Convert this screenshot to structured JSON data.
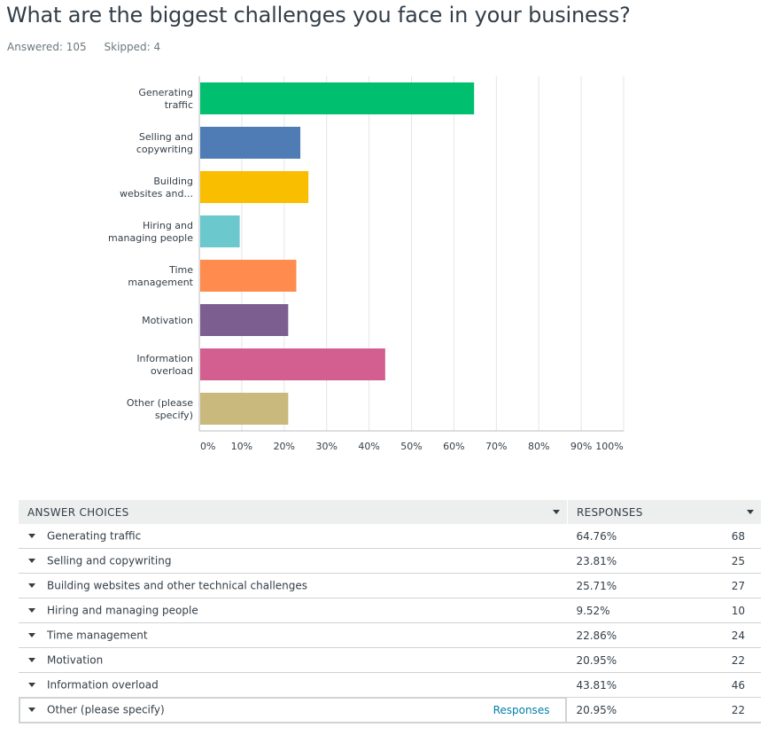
{
  "question": {
    "title": "What are the biggest challenges you face in your business?",
    "answered_label": "Answered: 105",
    "skipped_label": "Skipped: 4"
  },
  "chart_data": {
    "type": "bar",
    "orientation": "horizontal",
    "categories": [
      [
        "Generating",
        "traffic"
      ],
      [
        "Selling and",
        "copywriting"
      ],
      [
        "Building",
        "websites and..."
      ],
      [
        "Hiring and",
        "managing people"
      ],
      [
        "Time",
        "management"
      ],
      [
        "Motivation"
      ],
      [
        "Information",
        "overload"
      ],
      [
        "Other (please",
        "specify)"
      ]
    ],
    "values": [
      64.76,
      23.81,
      25.71,
      9.52,
      22.86,
      20.95,
      43.81,
      20.95
    ],
    "colors": [
      "#00bf6f",
      "#507cb6",
      "#f9be00",
      "#6bc8cd",
      "#ff8b4f",
      "#7d5e90",
      "#d25f90",
      "#c9b97d"
    ],
    "xlim": [
      0,
      100
    ],
    "xticks": [
      "0%",
      "10%",
      "20%",
      "30%",
      "40%",
      "50%",
      "60%",
      "70%",
      "80%",
      "90%",
      "100%"
    ],
    "grid": true
  },
  "table": {
    "headers": {
      "answer": "ANSWER CHOICES",
      "responses": "RESPONSES"
    },
    "rows": [
      {
        "answer": "Generating traffic",
        "percent": "64.76%",
        "count": "68"
      },
      {
        "answer": "Selling and copywriting",
        "percent": "23.81%",
        "count": "25"
      },
      {
        "answer": "Building websites and other technical challenges",
        "percent": "25.71%",
        "count": "27"
      },
      {
        "answer": "Hiring and managing people",
        "percent": "9.52%",
        "count": "10"
      },
      {
        "answer": "Time management",
        "percent": "22.86%",
        "count": "24"
      },
      {
        "answer": "Motivation",
        "percent": "20.95%",
        "count": "22"
      },
      {
        "answer": "Information overload",
        "percent": "43.81%",
        "count": "46"
      },
      {
        "answer": "Other (please specify)",
        "percent": "20.95%",
        "count": "22",
        "link": "Responses"
      }
    ]
  }
}
